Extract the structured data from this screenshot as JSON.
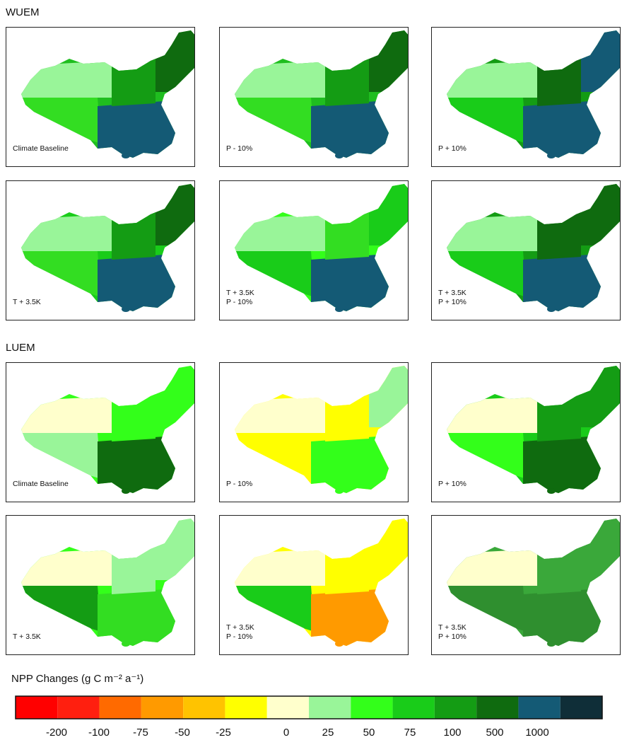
{
  "wuem": {
    "title": "WUEM",
    "panels": [
      {
        "label": [
          "Climate Baseline"
        ]
      },
      {
        "label": [
          "P - 10%"
        ]
      },
      {
        "label": [
          "P + 10%"
        ]
      },
      {
        "label": [
          "T + 3.5K"
        ]
      },
      {
        "label": [
          "T + 3.5K",
          "P - 10%"
        ]
      },
      {
        "label": [
          "T + 3.5K",
          "P + 10%"
        ]
      }
    ]
  },
  "luem": {
    "title": "LUEM",
    "panels": [
      {
        "label": [
          "Climate Baseline"
        ]
      },
      {
        "label": [
          "P - 10%"
        ]
      },
      {
        "label": [
          "P + 10%"
        ]
      },
      {
        "label": [
          "T + 3.5K"
        ]
      },
      {
        "label": [
          "T + 3.5K",
          "P - 10%"
        ]
      },
      {
        "label": [
          "T + 3.5K",
          "P + 10%"
        ]
      }
    ]
  },
  "colorbar": {
    "title": "NPP Changes (g C m⁻² a⁻¹)",
    "colors": [
      "#ff0000",
      "#ff1f0f",
      "#ff6a00",
      "#ff9a00",
      "#ffc300",
      "#ffff00",
      "#ffffcc",
      "#99f599",
      "#33ff1a",
      "#19cc19",
      "#149c14",
      "#0f6b0f",
      "#145a75",
      "#0f2e38"
    ],
    "ticks": [
      "-200",
      "-100",
      "-75",
      "-50",
      "-25",
      "0",
      "25",
      "50",
      "75",
      "100",
      "500",
      "1000"
    ]
  }
}
